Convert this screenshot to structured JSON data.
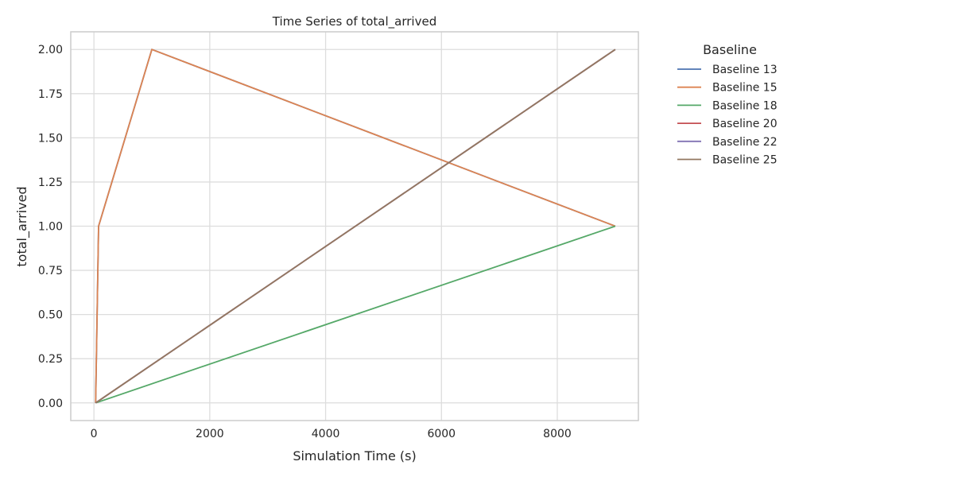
{
  "chart_data": {
    "type": "line",
    "title": "Time Series of total_arrived",
    "xlabel": "Simulation Time (s)",
    "ylabel": "total_arrived",
    "xlim": [
      -400,
      9400
    ],
    "ylim": [
      -0.1,
      2.1
    ],
    "xticks": [
      0,
      2000,
      4000,
      6000,
      8000
    ],
    "xtick_labels": [
      "0",
      "2000",
      "4000",
      "6000",
      "8000"
    ],
    "yticks": [
      0.0,
      0.25,
      0.5,
      0.75,
      1.0,
      1.25,
      1.5,
      1.75,
      2.0
    ],
    "ytick_labels": [
      "0.00",
      "0.25",
      "0.50",
      "0.75",
      "1.00",
      "1.25",
      "1.50",
      "1.75",
      "2.00"
    ],
    "grid": true,
    "legend": {
      "title": "Baseline",
      "placement": "outside right"
    },
    "series": [
      {
        "name": "Baseline 13",
        "color": "#4c72b0",
        "x": [
          30,
          80,
          1000,
          9000
        ],
        "y": [
          0,
          1,
          2,
          1
        ]
      },
      {
        "name": "Baseline 15",
        "color": "#dd8452",
        "x": [
          30,
          80,
          1000,
          9000
        ],
        "y": [
          0,
          1,
          2,
          1
        ]
      },
      {
        "name": "Baseline 18",
        "color": "#55a868",
        "x": [
          30,
          9000
        ],
        "y": [
          0,
          1
        ]
      },
      {
        "name": "Baseline 20",
        "color": "#c44e52",
        "x": [
          30,
          9000
        ],
        "y": [
          0,
          2
        ]
      },
      {
        "name": "Baseline 22",
        "color": "#8172b3",
        "x": [
          30,
          9000
        ],
        "y": [
          0,
          2
        ]
      },
      {
        "name": "Baseline 25",
        "color": "#937860",
        "x": [
          30,
          9000
        ],
        "y": [
          0,
          2
        ]
      }
    ]
  }
}
